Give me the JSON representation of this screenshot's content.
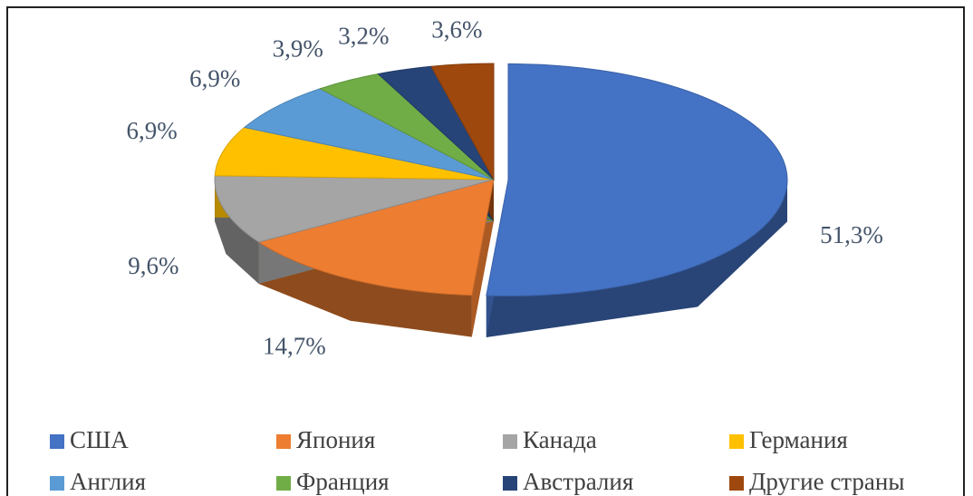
{
  "chart_data": {
    "type": "pie3d",
    "categories": [
      "США",
      "Япония",
      "Канада",
      "Германия",
      "Англия",
      "Франция",
      "Австралия",
      "Другие страны"
    ],
    "values": [
      51.3,
      14.7,
      9.6,
      6.9,
      6.9,
      3.9,
      3.2,
      3.6
    ],
    "value_labels": [
      "51,3%",
      "14,7%",
      "9,6%",
      "6,9%",
      "6,9%",
      "3,9%",
      "3,2%",
      "3,6%"
    ],
    "colors": [
      "#4472c4",
      "#ed7d31",
      "#a5a5a5",
      "#ffc000",
      "#5b9bd5",
      "#70ad47",
      "#264478",
      "#9e480e"
    ],
    "legend": "bottom"
  }
}
